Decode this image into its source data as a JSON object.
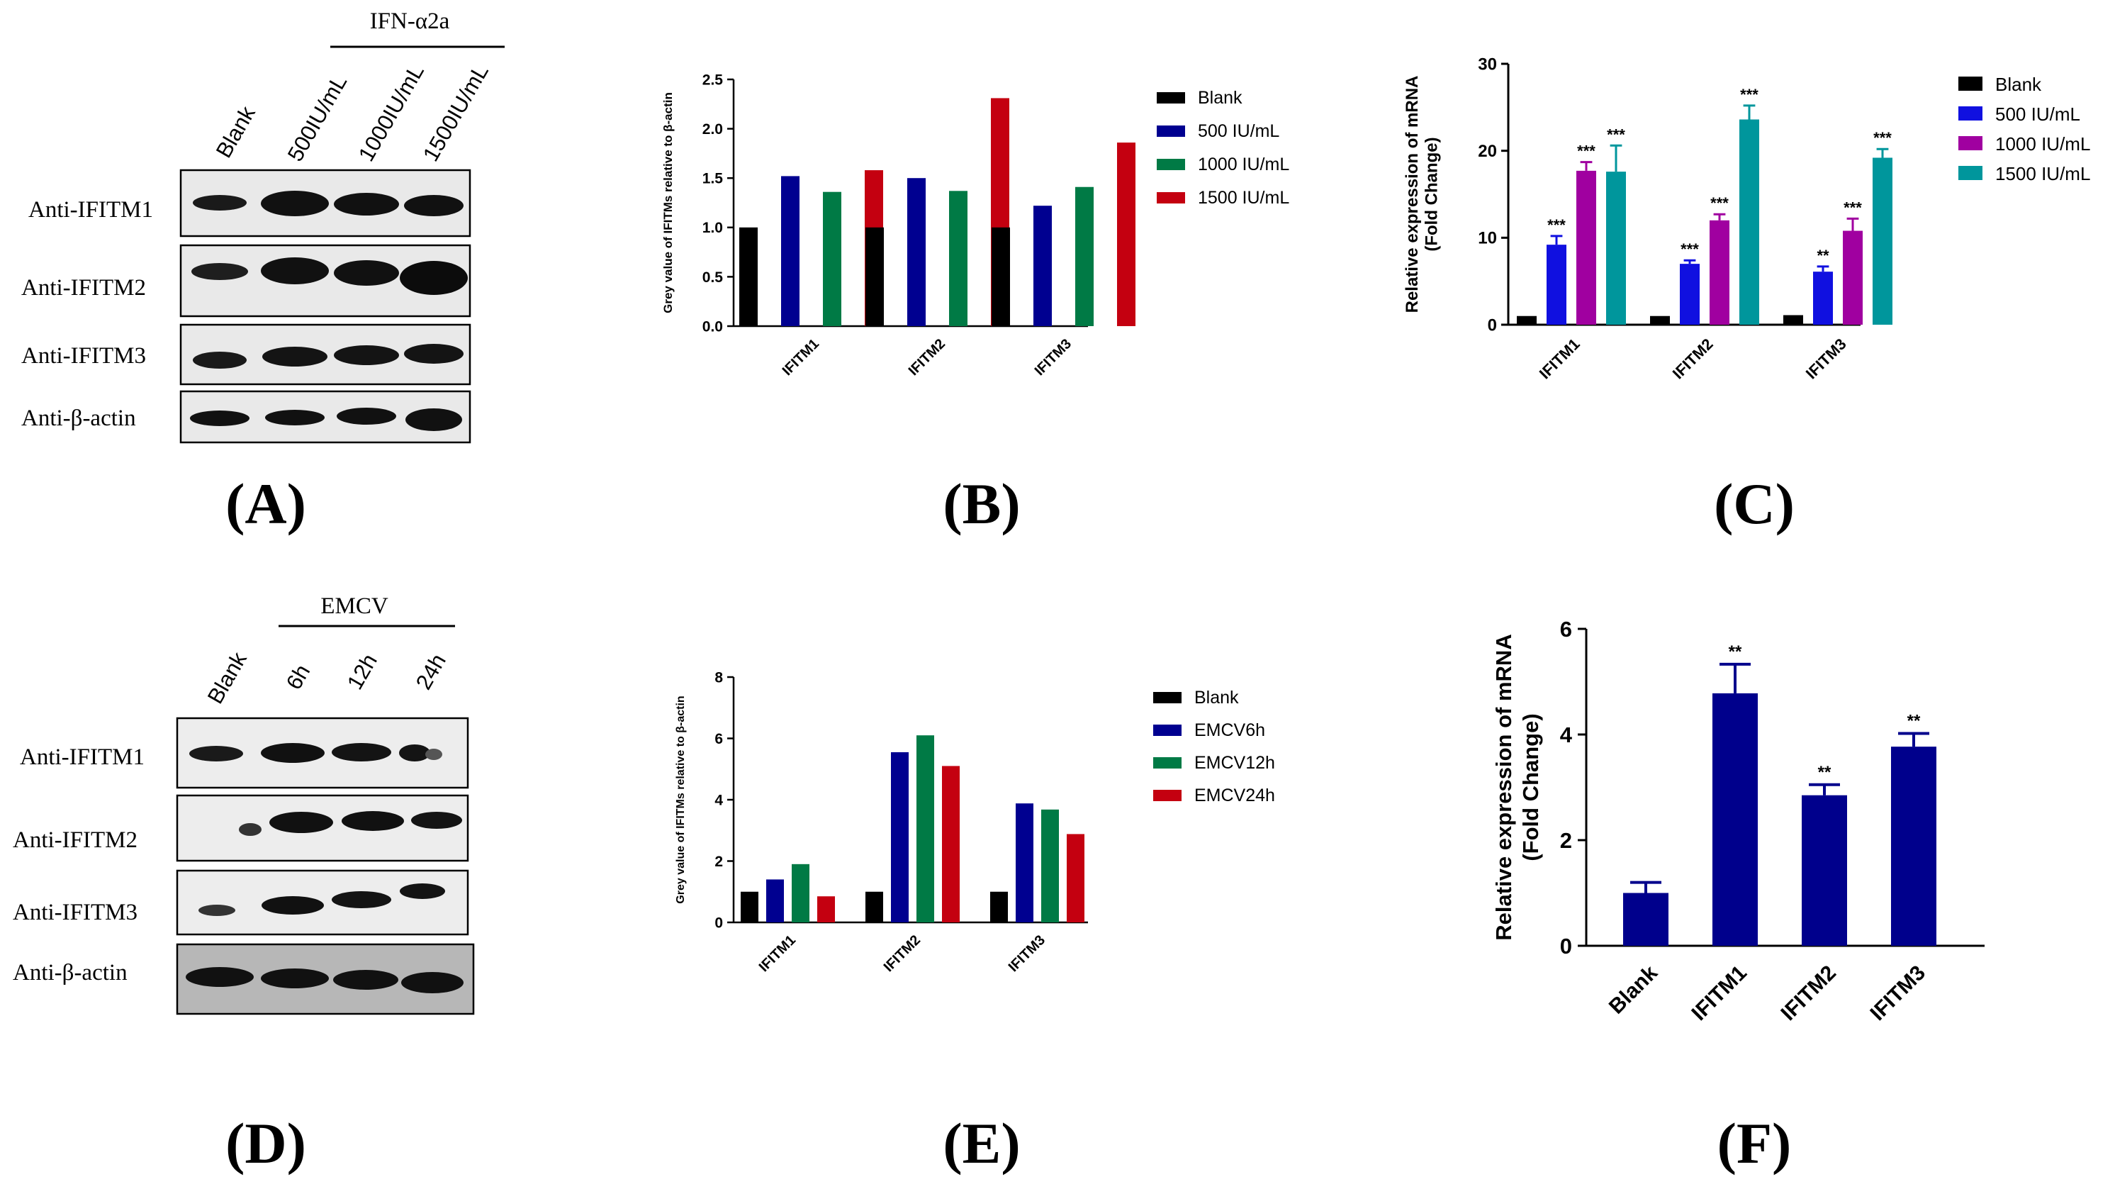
{
  "panel_labels": {
    "A": "(A)",
    "B": "(B)",
    "C": "(C)",
    "D": "(D)",
    "E": "(E)",
    "F": "(F)"
  },
  "blot_A": {
    "treatment": "IFN-α2a",
    "lanes": [
      "Blank",
      "500IU/mL",
      "1000IU/mL",
      "1500IU/mL"
    ],
    "rows": [
      "Anti-IFITM1",
      "Anti-IFITM2",
      "Anti-IFITM3",
      "Anti-β-actin"
    ]
  },
  "blot_D": {
    "treatment": "EMCV",
    "lanes": [
      "Blank",
      "6h",
      "12h",
      "24h"
    ],
    "rows": [
      "Anti-IFITM1",
      "Anti-IFITM2",
      "Anti-IFITM3",
      "Anti-β-actin"
    ]
  },
  "colors": {
    "black": "#000000",
    "navy": "#000090",
    "green": "#007a45",
    "red": "#c40010",
    "blue": "#1010e0",
    "purple": "#a000a0",
    "teal": "#00969c",
    "navy_f": "#00008c"
  },
  "chart_data": [
    {
      "id": "B",
      "type": "bar",
      "categories": [
        "IFITM1",
        "IFITM2",
        "IFITM3"
      ],
      "series": [
        {
          "name": "Blank",
          "values": [
            1.0,
            1.0,
            1.0
          ]
        },
        {
          "name": "500 IU/mL",
          "values": [
            1.52,
            1.5,
            1.22
          ]
        },
        {
          "name": "1000 IU/mL",
          "values": [
            1.36,
            1.37,
            1.41
          ]
        },
        {
          "name": "1500 IU/mL",
          "values": [
            1.58,
            2.31,
            1.86
          ]
        }
      ],
      "ylabel": "Grey value of IFITMs relative to β-actin",
      "ylim": [
        0,
        2.5
      ],
      "yticks": [
        "0.0",
        "0.5",
        "1.0",
        "1.5",
        "2.0",
        "2.5"
      ],
      "legend": "right"
    },
    {
      "id": "C",
      "type": "bar",
      "categories": [
        "IFITM1",
        "IFITM2",
        "IFITM3"
      ],
      "series": [
        {
          "name": "Blank",
          "values": [
            1.0,
            1.0,
            1.1
          ]
        },
        {
          "name": "500 IU/mL",
          "values": [
            9.2,
            7.0,
            6.1
          ],
          "errors": [
            1.0,
            0.4,
            0.6
          ],
          "sig": [
            "***",
            "***",
            "**"
          ]
        },
        {
          "name": "1000 IU/mL",
          "values": [
            17.7,
            12.0,
            10.8
          ],
          "errors": [
            1.0,
            0.7,
            1.4
          ],
          "sig": [
            "***",
            "***",
            "***"
          ]
        },
        {
          "name": "1500 IU/mL",
          "values": [
            17.6,
            23.6,
            19.2
          ],
          "errors": [
            3.0,
            1.6,
            1.0
          ],
          "sig": [
            "***",
            "***",
            "***"
          ]
        }
      ],
      "ylabel": "Relative expression of mRNA",
      "ylabel2": "(Fold Change)",
      "ylim": [
        0,
        30
      ],
      "yticks": [
        "0",
        "10",
        "20",
        "30"
      ],
      "legend": "right"
    },
    {
      "id": "E",
      "type": "bar",
      "categories": [
        "IFITM1",
        "IFITM2",
        "IFITM3"
      ],
      "series": [
        {
          "name": "Blank",
          "values": [
            1.0,
            1.0,
            1.0
          ]
        },
        {
          "name": "EMCV6h",
          "values": [
            1.4,
            5.55,
            3.88
          ]
        },
        {
          "name": "EMCV12h",
          "values": [
            1.9,
            6.1,
            3.68
          ]
        },
        {
          "name": "EMCV24h",
          "values": [
            0.85,
            5.1,
            2.88
          ]
        }
      ],
      "ylabel": "Grey value of IFITMs relative to β-actin",
      "ylim": [
        0,
        8
      ],
      "yticks": [
        "0",
        "2",
        "4",
        "6",
        "8"
      ],
      "legend": "right"
    },
    {
      "id": "F",
      "type": "bar",
      "categories": [
        "Blank",
        "IFITM1",
        "IFITM2",
        "IFITM3"
      ],
      "values": [
        1.0,
        4.78,
        2.85,
        3.77
      ],
      "errors": [
        0.2,
        0.55,
        0.2,
        0.25
      ],
      "sig": [
        "",
        "**",
        "**",
        "**"
      ],
      "ylabel": "Relative expression of mRNA",
      "ylabel2": "(Fold Change)",
      "ylim": [
        0,
        6
      ],
      "yticks": [
        "0",
        "2",
        "4",
        "6"
      ]
    }
  ]
}
